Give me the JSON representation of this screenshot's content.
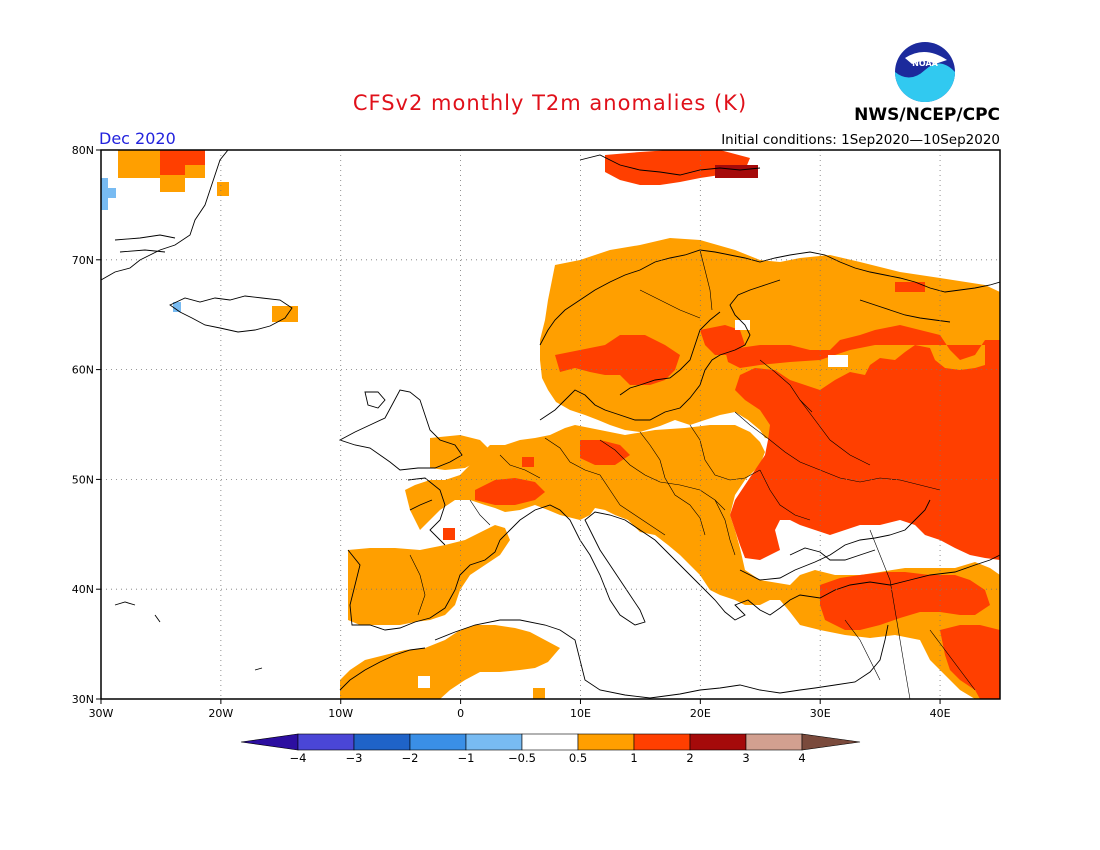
{
  "header": {
    "title": "CFSv2 monthly T2m anomalies (K)",
    "period": "Dec 2020",
    "initial_conditions": "Initial conditions: 1Sep2020—10Sep2020",
    "organization": "NWS/NCEP/CPC",
    "logo_text": "NOAA"
  },
  "map": {
    "lat_labels": [
      "80N",
      "70N",
      "60N",
      "50N",
      "40N",
      "30N"
    ],
    "lon_labels": [
      "30W",
      "20W",
      "10W",
      "0",
      "10E",
      "20E",
      "30E",
      "40E"
    ],
    "lon_range": [
      -30,
      45
    ],
    "lat_range": [
      30,
      80
    ],
    "grid": "dotted"
  },
  "colorbar": {
    "labels": [
      "−4",
      "−3",
      "−2",
      "−1",
      "−0.5",
      "0.5",
      "1",
      "2",
      "3",
      "4"
    ],
    "colors": {
      "lt_m4": "#2c0ea0",
      "m4_m3": "#4a46d6",
      "m3_m2": "#1f63c8",
      "m2_m1": "#3a8fe6",
      "m1_m05": "#78bbf2",
      "neutral": "#ffffff",
      "p05_p1": "#ff9f00",
      "p1_p2": "#ff3f00",
      "p2_p3": "#a50a0a",
      "p3_p4": "#d2a090",
      "gt_p4": "#7a4a3c"
    }
  }
}
